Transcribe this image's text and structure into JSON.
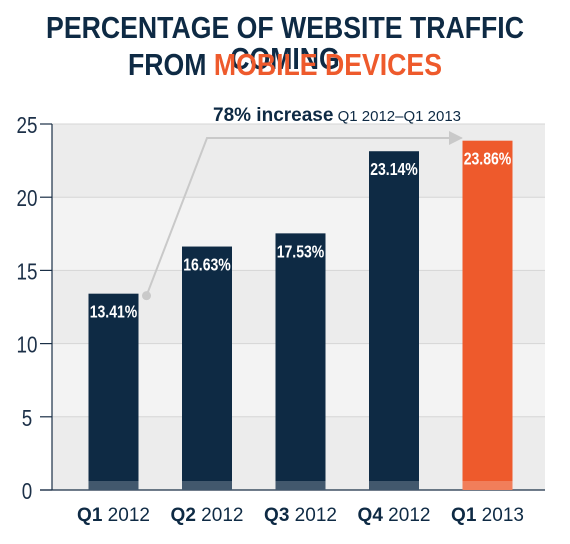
{
  "title": {
    "line1": "PERCENTAGE OF WEBSITE TRAFFIC COMING",
    "line2_prefix": "FROM ",
    "line2_accent": "MOBILE DEVICES"
  },
  "colors": {
    "navy": "#0e2a44",
    "orange": "#ee5a2c",
    "title_navy": "#0e2a44"
  },
  "chart_data": {
    "type": "bar",
    "categories": [
      {
        "bold": "Q1",
        "rest": " 2012"
      },
      {
        "bold": "Q2",
        "rest": " 2012"
      },
      {
        "bold": "Q3",
        "rest": " 2012"
      },
      {
        "bold": "Q4",
        "rest": " 2012"
      },
      {
        "bold": "Q1",
        "rest": " 2013"
      }
    ],
    "values": [
      13.41,
      16.63,
      17.53,
      23.14,
      23.86
    ],
    "value_labels": [
      "13.41%",
      "16.63%",
      "17.53%",
      "23.14%",
      "23.86%"
    ],
    "highlight_index": 4,
    "ylim": [
      0,
      25
    ],
    "yticks": [
      0,
      5,
      10,
      15,
      20,
      25
    ],
    "annotation": {
      "bold": "78% increase",
      "rest": " Q1 2012–Q1 2013",
      "from_index": 0,
      "to_index": 4
    },
    "grid": true
  }
}
